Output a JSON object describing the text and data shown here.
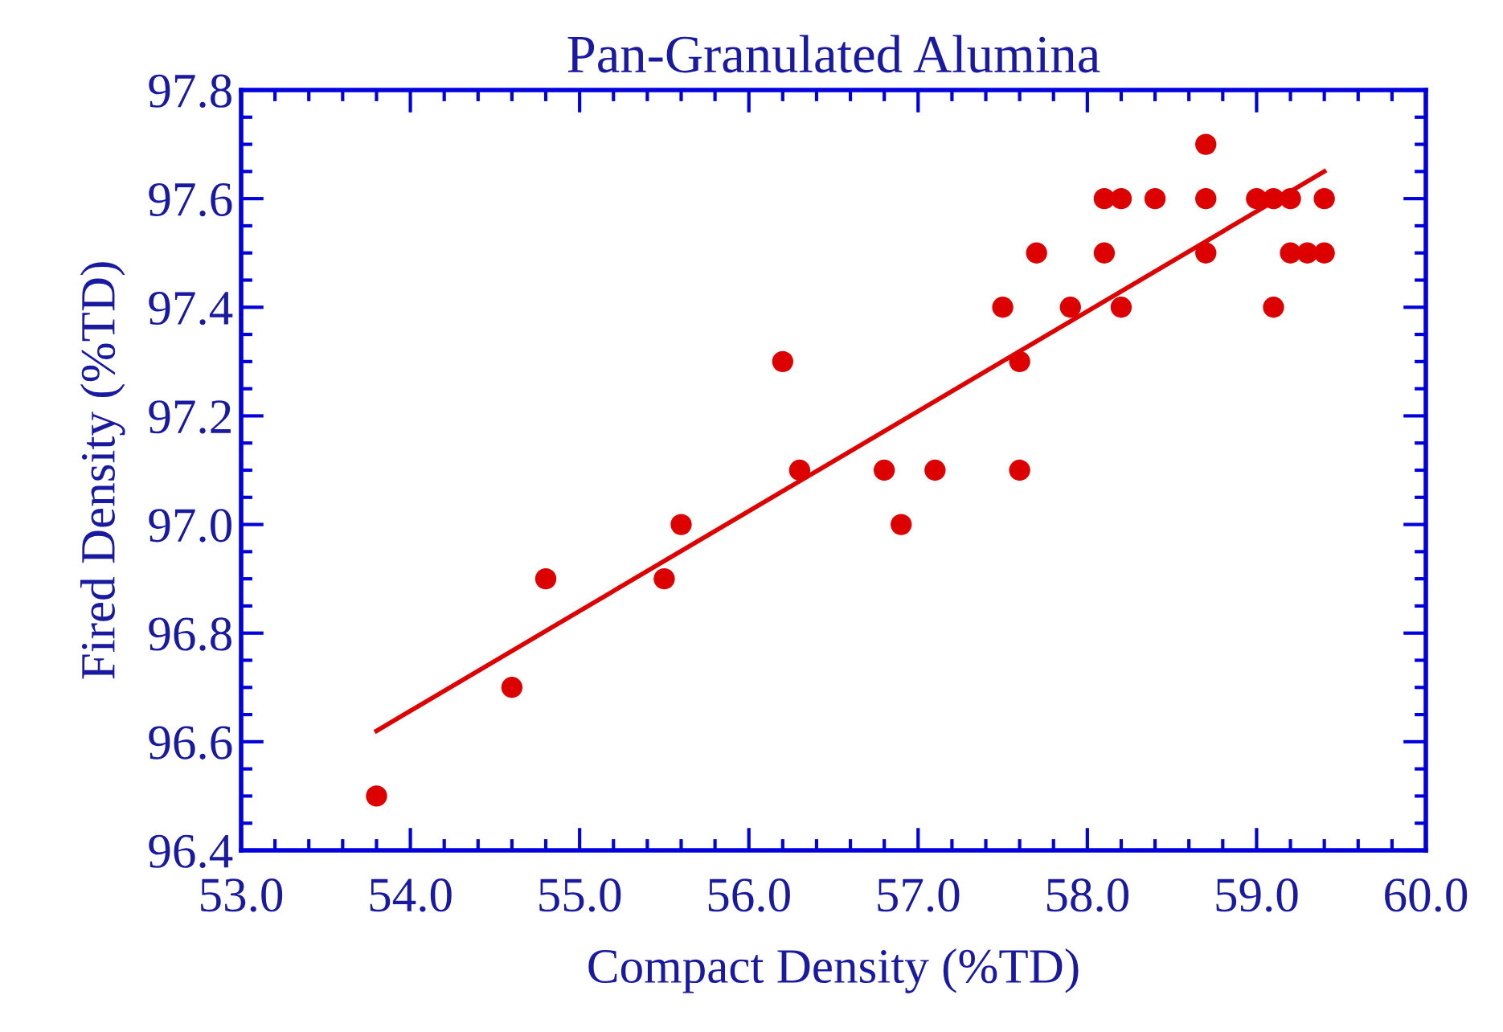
{
  "chart_data": {
    "type": "scatter",
    "title": "Pan-Granulated Alumina",
    "xlabel": "Compact Density (%TD)",
    "ylabel": "Fired Density (%TD)",
    "xlim": [
      53.0,
      60.0
    ],
    "ylim": [
      96.4,
      97.8
    ],
    "xticks": [
      {
        "value": 53,
        "label": "53.0"
      },
      {
        "value": 54,
        "label": "54.0"
      },
      {
        "value": 55,
        "label": "55.0"
      },
      {
        "value": 56,
        "label": "56.0"
      },
      {
        "value": 57,
        "label": "57.0"
      },
      {
        "value": 58,
        "label": "58.0"
      },
      {
        "value": 59,
        "label": "59.0"
      },
      {
        "value": 60,
        "label": "60.0"
      }
    ],
    "yticks": [
      96.4,
      96.6,
      96.8,
      {
        "value": 97,
        "label": "97.0"
      },
      97.2,
      97.4,
      97.6,
      97.8
    ],
    "grid": false,
    "legend": false,
    "series": [
      {
        "marker": "circle",
        "color": "#dd0000",
        "x": [
          53.8,
          54.6,
          54.8,
          55.5,
          55.6,
          56.2,
          56.3,
          56.8,
          56.9,
          57.1,
          57.5,
          57.6,
          57.6,
          57.7,
          57.9,
          58.1,
          58.1,
          58.2,
          58.2,
          58.4,
          58.7,
          58.7,
          58.7,
          59.0,
          59.1,
          59.1,
          59.2,
          59.2,
          59.3,
          59.4,
          59.4
        ],
        "values": [
          96.5,
          96.7,
          96.9,
          96.9,
          97.0,
          97.3,
          97.1,
          97.1,
          97.0,
          97.1,
          97.4,
          97.3,
          97.1,
          97.5,
          97.4,
          97.6,
          97.5,
          97.6,
          97.4,
          97.6,
          97.7,
          97.6,
          97.5,
          97.6,
          97.6,
          97.4,
          97.6,
          97.5,
          97.5,
          97.6,
          97.5
        ]
      },
      {
        "type": "line",
        "color": "#dd0000",
        "x": [
          53.8,
          59.4
        ],
        "values": [
          96.62,
          97.65
        ]
      }
    ]
  }
}
